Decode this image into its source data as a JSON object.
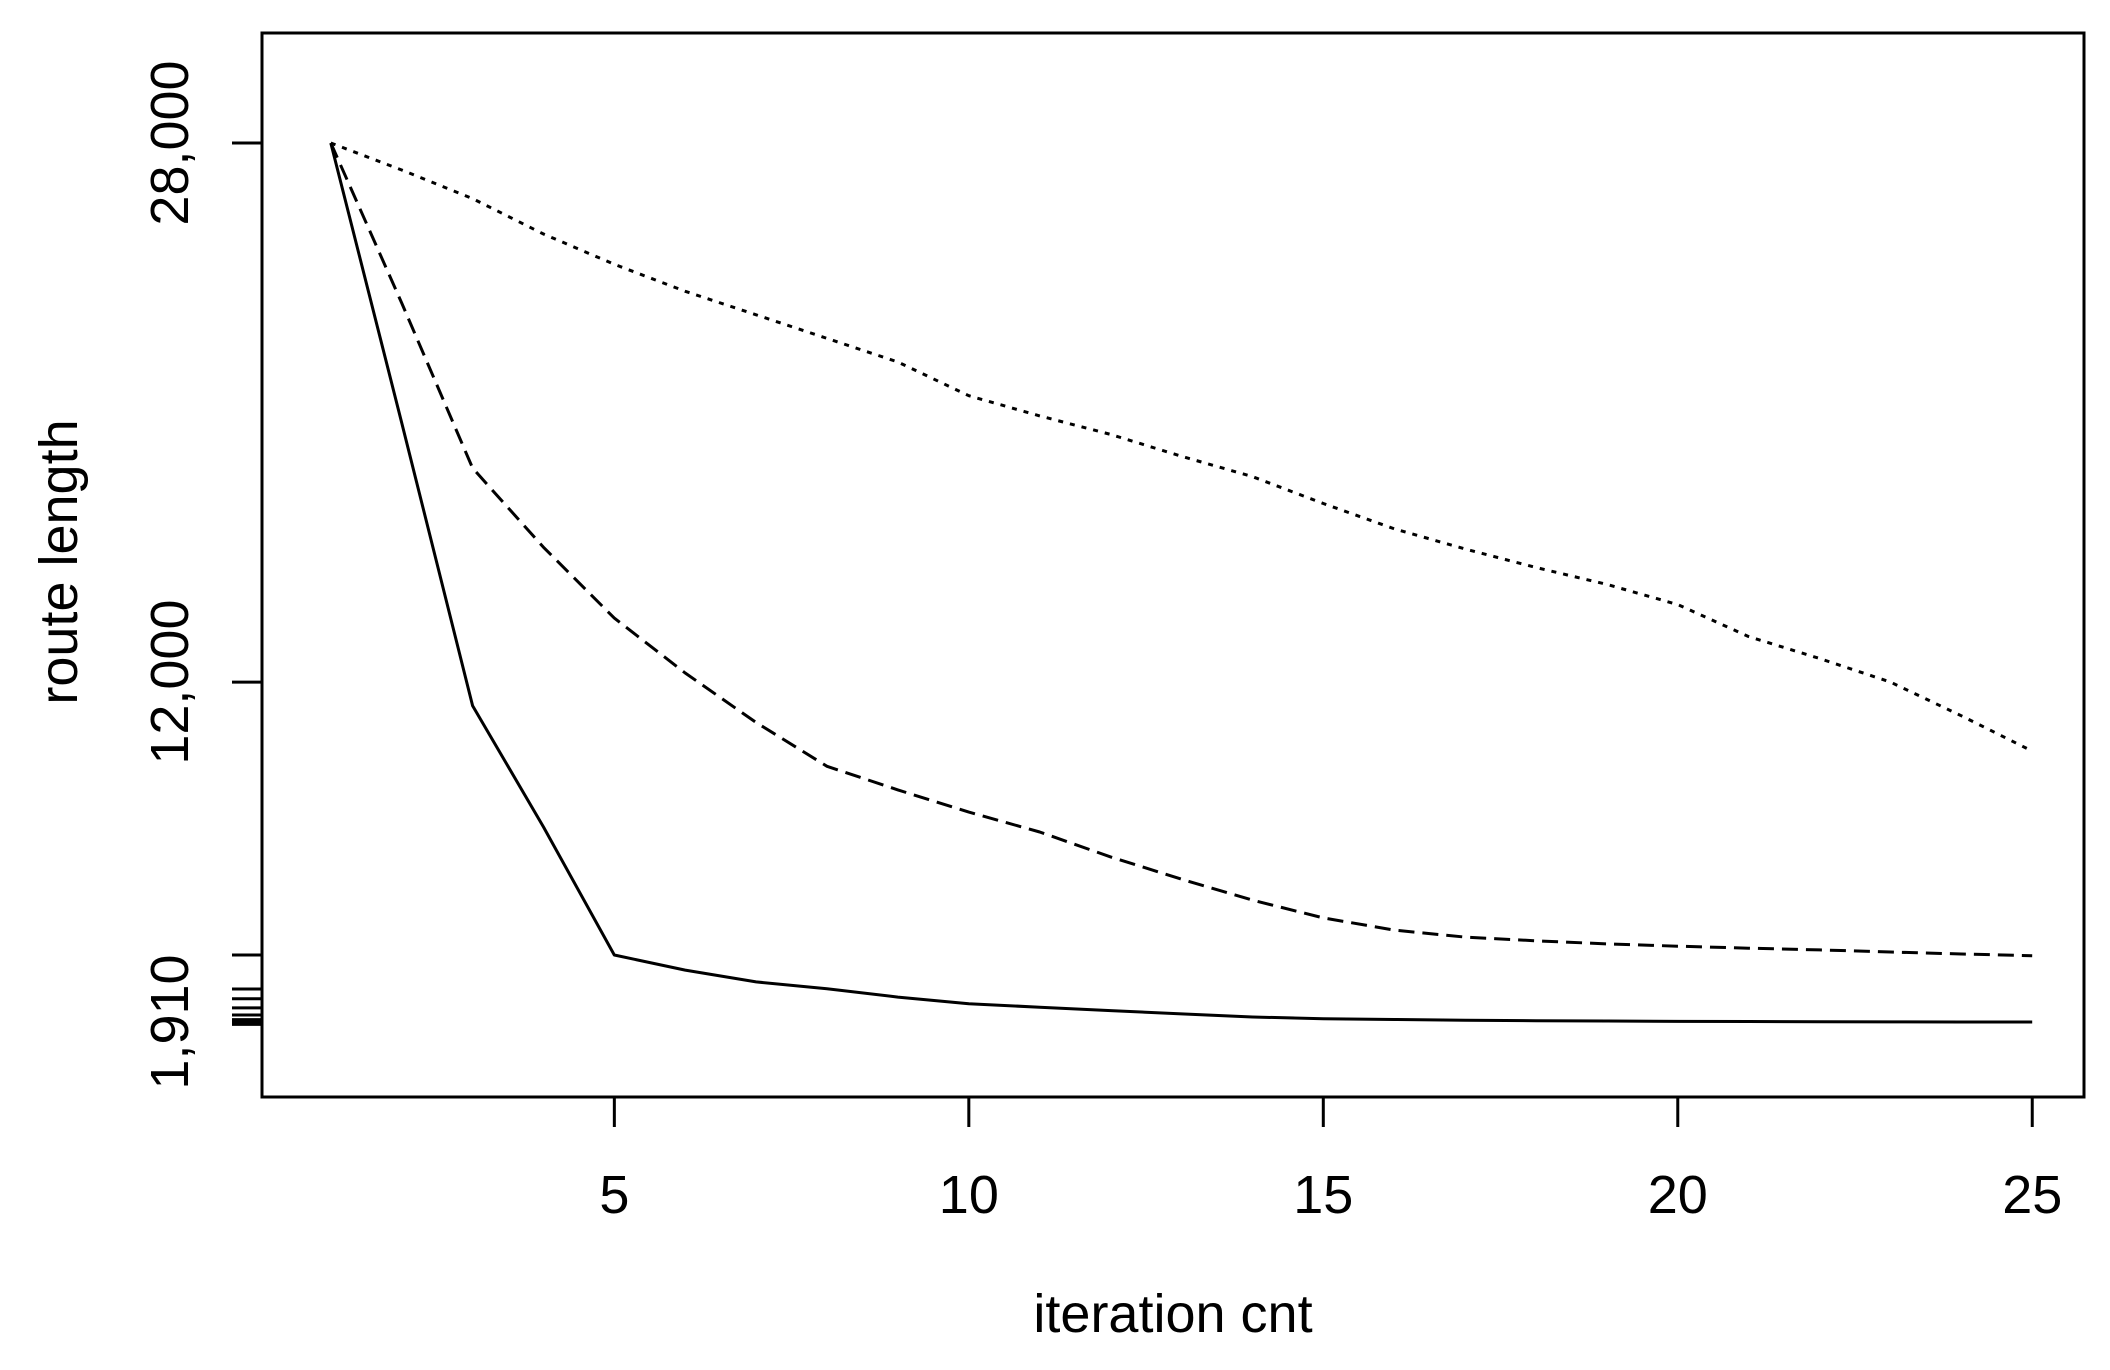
{
  "figure": {
    "background_color": "#ffffff",
    "line_color": "#000000"
  },
  "chart_data": {
    "type": "line",
    "title": "",
    "xlabel": "iteration cnt",
    "ylabel": "route length",
    "grid": false,
    "legend": "none",
    "xlim": [
      0.03,
      25.73
    ],
    "ylim": [
      -315,
      31265
    ],
    "x": [
      1,
      2,
      3,
      4,
      5,
      6,
      7,
      8,
      9,
      10,
      11,
      12,
      13,
      14,
      15,
      16,
      17,
      18,
      19,
      20,
      21,
      22,
      23,
      24,
      25
    ],
    "series": [
      {
        "name": "solid-line",
        "linetype": "solid",
        "values": [
          28000,
          19700,
          11300,
          7700,
          3900,
          3450,
          3100,
          2900,
          2650,
          2450,
          2350,
          2250,
          2150,
          2060,
          2010,
          1985,
          1965,
          1950,
          1940,
          1930,
          1925,
          1920,
          1915,
          1912,
          1910
        ]
      },
      {
        "name": "dashed-line",
        "linetype": "dashed",
        "values": [
          28000,
          23250,
          18350,
          16000,
          13900,
          12270,
          10800,
          9500,
          8800,
          8140,
          7550,
          6810,
          6150,
          5530,
          5000,
          4640,
          4430,
          4320,
          4230,
          4160,
          4100,
          4050,
          3990,
          3930,
          3880
        ]
      },
      {
        "name": "dotted-line",
        "linetype": "dotted",
        "values": [
          28000,
          27200,
          26350,
          25300,
          24400,
          23600,
          22900,
          22200,
          21500,
          20500,
          19900,
          19350,
          18700,
          18100,
          17300,
          16550,
          15950,
          15400,
          14900,
          14300,
          13350,
          12700,
          12000,
          11000,
          9950
        ]
      }
    ],
    "x_ticks": [
      {
        "value": 5,
        "label": "5"
      },
      {
        "value": 10,
        "label": "10"
      },
      {
        "value": 15,
        "label": "15"
      },
      {
        "value": 20,
        "label": "20"
      },
      {
        "value": 25,
        "label": "25"
      }
    ],
    "y_ticks": [
      {
        "value": 28000,
        "label": "28,000"
      },
      {
        "value": 12000,
        "label": "12,000"
      },
      {
        "value": 3900,
        "label": ""
      },
      {
        "value": 2890,
        "label": ""
      },
      {
        "value": 2600,
        "label": ""
      },
      {
        "value": 2330,
        "label": ""
      },
      {
        "value": 2120,
        "label": ""
      },
      {
        "value": 1980,
        "label": ""
      },
      {
        "value": 1910,
        "label": "1,910"
      },
      {
        "value": 1840,
        "label": ""
      }
    ]
  }
}
